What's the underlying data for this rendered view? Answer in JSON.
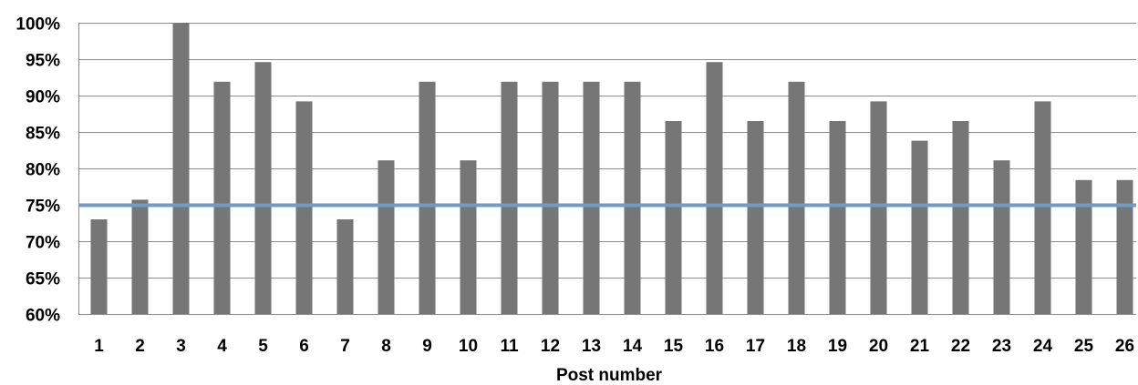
{
  "chart_data": {
    "type": "bar",
    "title": "",
    "xlabel": "Post number",
    "ylabel": "",
    "ylim": [
      60,
      100
    ],
    "yticks": [
      60,
      65,
      70,
      75,
      80,
      85,
      90,
      95,
      100
    ],
    "ytick_labels": [
      "60%",
      "65%",
      "70%",
      "75%",
      "80%",
      "85%",
      "90%",
      "95%",
      "100%"
    ],
    "categories": [
      "1",
      "2",
      "3",
      "4",
      "5",
      "6",
      "7",
      "8",
      "9",
      "10",
      "11",
      "12",
      "13",
      "14",
      "15",
      "16",
      "17",
      "18",
      "19",
      "20",
      "21",
      "22",
      "23",
      "24",
      "25",
      "26"
    ],
    "values": [
      73,
      75.7,
      100,
      91.9,
      94.6,
      89.2,
      73,
      81.1,
      91.9,
      81.1,
      91.9,
      91.9,
      91.9,
      91.9,
      86.5,
      94.6,
      86.5,
      91.9,
      86.5,
      89.2,
      83.8,
      86.5,
      81.1,
      89.2,
      78.4,
      78.4
    ],
    "reference_line": 75,
    "grid": true,
    "legend": "none",
    "colors": {
      "bar": "#767676",
      "reference_line": "#6f9bc7",
      "grid": "#8c8c8c"
    }
  }
}
